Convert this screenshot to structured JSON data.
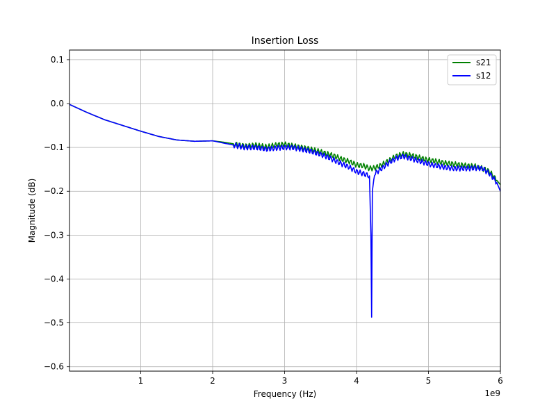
{
  "chart_data": {
    "type": "line",
    "title": "Insertion Loss",
    "xlabel": "Frequency (Hz)",
    "ylabel": "Magnitude (dB)",
    "x_offset_label": "1e9",
    "xlim": [
      10000000,
      6000000000
    ],
    "ylim": [
      -0.61,
      0.122
    ],
    "x_ticks": [
      1000000000,
      2000000000,
      3000000000,
      4000000000,
      5000000000,
      6000000000
    ],
    "x_tick_labels": [
      "1",
      "2",
      "3",
      "4",
      "5",
      "6"
    ],
    "y_ticks": [
      -0.6,
      -0.5,
      -0.4,
      -0.3,
      -0.2,
      -0.1,
      0.0,
      0.1
    ],
    "y_tick_labels": [
      "−0.6",
      "−0.5",
      "−0.4",
      "−0.3",
      "−0.2",
      "−0.1",
      "0.0",
      "0.1"
    ],
    "grid": true,
    "legend_position": "top-right",
    "series": [
      {
        "name": "s21",
        "color": "#008000",
        "x": [
          10000000,
          250000000,
          500000000,
          750000000,
          1000000000,
          1250000000,
          1500000000,
          1750000000,
          2000000000,
          2150000000,
          2300000000,
          2450000000,
          2600000000,
          2750000000,
          2900000000,
          3000000000,
          3100000000,
          3200000000,
          3350000000,
          3500000000,
          3600000000,
          3700000000,
          3800000000,
          3900000000,
          4000000000,
          4100000000,
          4180000000,
          4250000000,
          4350000000,
          4450000000,
          4550000000,
          4650000000,
          4750000000,
          4850000000,
          4950000000,
          5050000000,
          5150000000,
          5250000000,
          5350000000,
          5450000000,
          5550000000,
          5650000000,
          5750000000,
          5850000000,
          5950000000,
          6000000000
        ],
        "y": [
          -0.002,
          -0.02,
          -0.037,
          -0.05,
          -0.063,
          -0.075,
          -0.083,
          -0.086,
          -0.085,
          -0.088,
          -0.092,
          -0.097,
          -0.095,
          -0.099,
          -0.094,
          -0.093,
          -0.096,
          -0.099,
          -0.104,
          -0.11,
          -0.115,
          -0.12,
          -0.127,
          -0.132,
          -0.14,
          -0.142,
          -0.148,
          -0.147,
          -0.14,
          -0.13,
          -0.12,
          -0.115,
          -0.118,
          -0.122,
          -0.127,
          -0.13,
          -0.133,
          -0.136,
          -0.138,
          -0.14,
          -0.142,
          -0.143,
          -0.148,
          -0.155,
          -0.175,
          -0.185
        ]
      },
      {
        "name": "s12",
        "color": "#0000ff",
        "x": [
          10000000,
          250000000,
          500000000,
          750000000,
          1000000000,
          1250000000,
          1500000000,
          1750000000,
          2000000000,
          2150000000,
          2300000000,
          2450000000,
          2600000000,
          2750000000,
          2900000000,
          3000000000,
          3100000000,
          3200000000,
          3350000000,
          3500000000,
          3600000000,
          3700000000,
          3800000000,
          3900000000,
          4000000000,
          4100000000,
          4180000000,
          4200000000,
          4210000000,
          4220000000,
          4250000000,
          4350000000,
          4450000000,
          4550000000,
          4650000000,
          4750000000,
          4850000000,
          4950000000,
          5050000000,
          5150000000,
          5250000000,
          5350000000,
          5450000000,
          5550000000,
          5650000000,
          5750000000,
          5850000000,
          5950000000,
          6000000000
        ],
        "y": [
          -0.002,
          -0.02,
          -0.037,
          -0.05,
          -0.063,
          -0.075,
          -0.083,
          -0.086,
          -0.085,
          -0.09,
          -0.095,
          -0.1,
          -0.1,
          -0.104,
          -0.101,
          -0.1,
          -0.1,
          -0.103,
          -0.108,
          -0.116,
          -0.122,
          -0.13,
          -0.138,
          -0.145,
          -0.155,
          -0.16,
          -0.165,
          -0.3,
          -0.487,
          -0.2,
          -0.16,
          -0.148,
          -0.135,
          -0.125,
          -0.12,
          -0.125,
          -0.13,
          -0.135,
          -0.14,
          -0.143,
          -0.146,
          -0.148,
          -0.148,
          -0.148,
          -0.147,
          -0.148,
          -0.16,
          -0.18,
          -0.2
        ]
      }
    ]
  }
}
